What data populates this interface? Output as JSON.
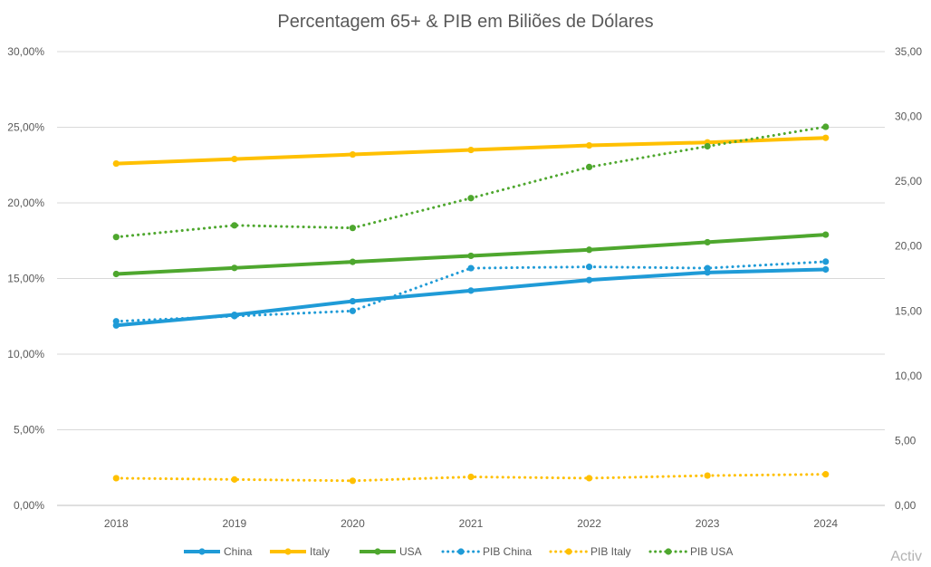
{
  "chart_data": {
    "type": "line",
    "title": "Percentagem 65+ & PIB em Biliões de Dólares",
    "categories": [
      "2018",
      "2019",
      "2020",
      "2021",
      "2022",
      "2023",
      "2024"
    ],
    "y_left": {
      "ylim": [
        0,
        30
      ],
      "ticks": [
        0,
        5,
        10,
        15,
        20,
        25,
        30
      ],
      "tick_labels": [
        "0,00%",
        "5,00%",
        "10,00%",
        "15,00%",
        "20,00%",
        "25,00%",
        "30,00%"
      ]
    },
    "y_right": {
      "ylim": [
        0,
        35
      ],
      "ticks": [
        0,
        5,
        10,
        15,
        20,
        25,
        30,
        35
      ],
      "tick_labels": [
        "0,00",
        "5,00",
        "10,00",
        "15,00",
        "20,00",
        "25,00",
        "30,00",
        "35,00"
      ]
    },
    "grid": true,
    "legend_position": "bottom",
    "series": [
      {
        "name": "China",
        "axis": "left",
        "style": "solid",
        "color": "#1F9BD7",
        "values": [
          11.9,
          12.6,
          13.5,
          14.2,
          14.9,
          15.4,
          15.6
        ]
      },
      {
        "name": "Italy",
        "axis": "left",
        "style": "solid",
        "color": "#FFC000",
        "values": [
          22.6,
          22.9,
          23.2,
          23.5,
          23.8,
          24.0,
          24.3
        ]
      },
      {
        "name": "USA",
        "axis": "left",
        "style": "solid",
        "color": "#4EA72E",
        "values": [
          15.3,
          15.7,
          16.1,
          16.5,
          16.9,
          17.4,
          17.9
        ]
      },
      {
        "name": "PIB China",
        "axis": "right",
        "style": "dotted",
        "color": "#1F9BD7",
        "values": [
          14.2,
          14.6,
          15.0,
          18.3,
          18.4,
          18.3,
          18.8
        ]
      },
      {
        "name": "PIB Italy",
        "axis": "right",
        "style": "dotted",
        "color": "#FFC000",
        "values": [
          2.1,
          2.0,
          1.9,
          2.2,
          2.1,
          2.3,
          2.4
        ]
      },
      {
        "name": "PIB USA",
        "axis": "right",
        "style": "dotted",
        "color": "#4EA72E",
        "values": [
          20.7,
          21.6,
          21.4,
          23.7,
          26.1,
          27.7,
          29.2
        ]
      }
    ]
  },
  "watermark": "Activ"
}
